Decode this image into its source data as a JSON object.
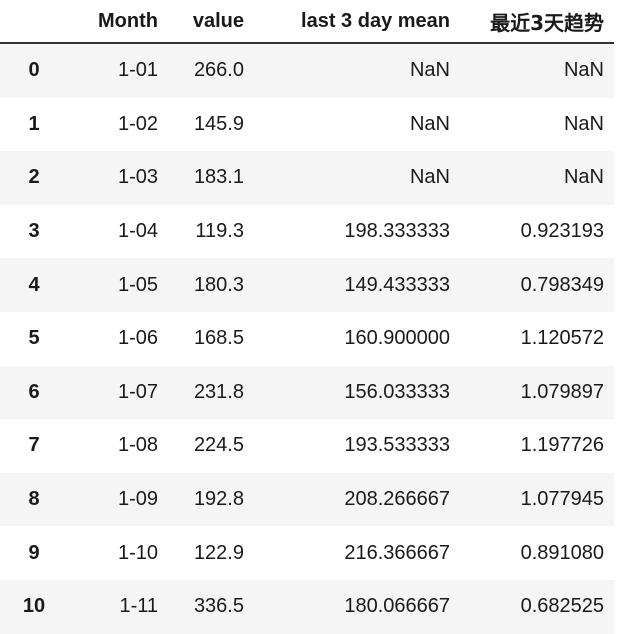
{
  "table": {
    "index_header": "",
    "columns": [
      "Month",
      "value",
      "last 3 day mean",
      "最近3天趋势"
    ],
    "rows": [
      {
        "index": "0",
        "month": "1-01",
        "value": "266.0",
        "mean": "NaN",
        "trend": "NaN"
      },
      {
        "index": "1",
        "month": "1-02",
        "value": "145.9",
        "mean": "NaN",
        "trend": "NaN"
      },
      {
        "index": "2",
        "month": "1-03",
        "value": "183.1",
        "mean": "NaN",
        "trend": "NaN"
      },
      {
        "index": "3",
        "month": "1-04",
        "value": "119.3",
        "mean": "198.333333",
        "trend": "0.923193"
      },
      {
        "index": "4",
        "month": "1-05",
        "value": "180.3",
        "mean": "149.433333",
        "trend": "0.798349"
      },
      {
        "index": "5",
        "month": "1-06",
        "value": "168.5",
        "mean": "160.900000",
        "trend": "1.120572"
      },
      {
        "index": "6",
        "month": "1-07",
        "value": "231.8",
        "mean": "156.033333",
        "trend": "1.079897"
      },
      {
        "index": "7",
        "month": "1-08",
        "value": "224.5",
        "mean": "193.533333",
        "trend": "1.197726"
      },
      {
        "index": "8",
        "month": "1-09",
        "value": "192.8",
        "mean": "208.266667",
        "trend": "1.077945"
      },
      {
        "index": "9",
        "month": "1-10",
        "value": "122.9",
        "mean": "216.366667",
        "trend": "0.891080"
      },
      {
        "index": "10",
        "month": "1-11",
        "value": "336.5",
        "mean": "180.066667",
        "trend": "0.682525"
      }
    ]
  }
}
